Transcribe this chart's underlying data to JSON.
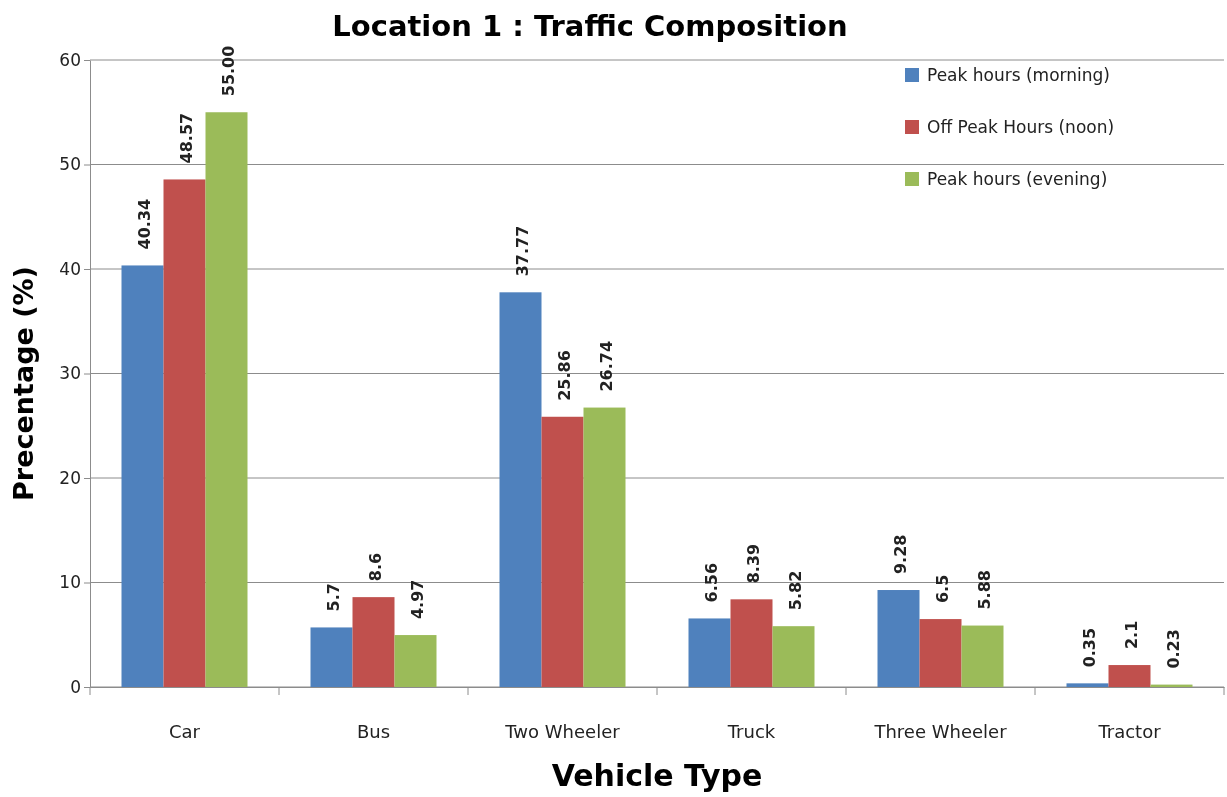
{
  "chart_data": {
    "type": "bar",
    "title": "Location 1 : Traffic Composition",
    "xlabel": "Vehicle Type",
    "ylabel": "Precentage (%)",
    "categories": [
      "Car",
      "Bus",
      "Two Wheeler",
      "Truck",
      "Three Wheeler",
      "Tractor"
    ],
    "series": [
      {
        "name": "Peak hours (morning)",
        "color": "#4f81bd",
        "values": [
          40.34,
          5.7,
          37.77,
          6.56,
          9.28,
          0.35
        ],
        "value_labels": [
          "40.34",
          "5.7",
          "37.77",
          "6.56",
          "9.28",
          "0.35"
        ]
      },
      {
        "name": "Off Peak Hours (noon)",
        "color": "#c0504d",
        "values": [
          48.57,
          8.6,
          25.86,
          8.39,
          6.5,
          2.1
        ],
        "value_labels": [
          "48.57",
          "8.6",
          "25.86",
          "8.39",
          "6.5",
          "2.1"
        ]
      },
      {
        "name": "Peak hours (evening)",
        "color": "#9bbb59",
        "values": [
          55.0,
          4.97,
          26.74,
          5.82,
          5.88,
          0.23
        ],
        "value_labels": [
          "55.00",
          "4.97",
          "26.74",
          "5.82",
          "5.88",
          "0.23"
        ]
      }
    ],
    "ylim": [
      0,
      60
    ],
    "yticks": [
      0,
      10,
      20,
      30,
      40,
      50,
      60
    ],
    "grid": "y",
    "legend": "top right"
  }
}
